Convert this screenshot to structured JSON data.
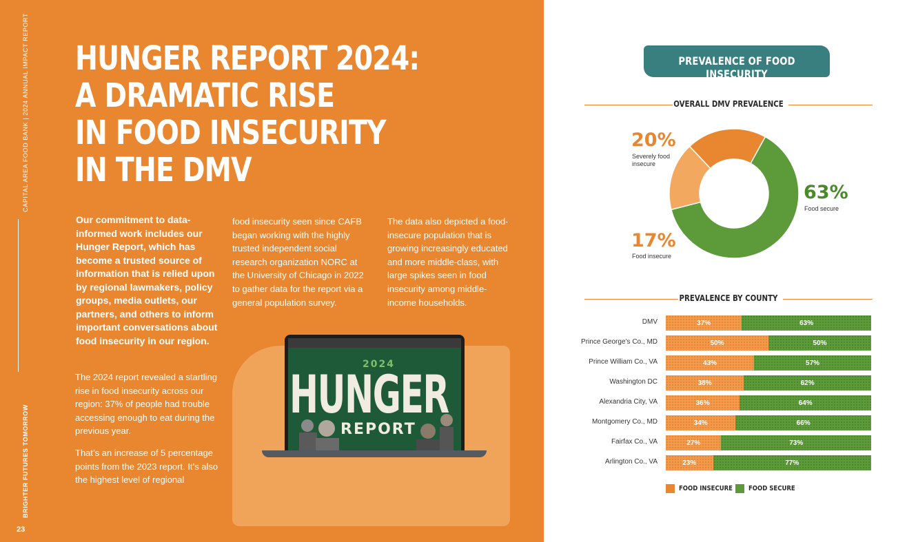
{
  "sidebar": {
    "top_text": "CAPITAL AREA FOOD BANK | 2024 ANNUAL IMPACT REPORT",
    "bottom_text": "BRIGHTER FUTURES TOMORROW",
    "page_number": "23"
  },
  "headline": {
    "line1": "HUNGER REPORT 2024:",
    "line2": "A DRAMATIC RISE",
    "line3": "IN FOOD INSECURITY",
    "line4": "IN THE DMV"
  },
  "body": {
    "lead": "Our commitment to data-informed work includes our Hunger Report, which has become a trusted source of information that is relied upon by regional lawmakers, policy groups, media outlets, our partners, and others to inform important conversations about food insecurity in our region.",
    "para1": "The 2024 report revealed a startling rise in food insecurity across our region: 37% of people had trouble accessing enough to eat during the previous year.",
    "para2": "That’s an increase of 5 percentage points from the 2023 report. It’s also the highest level of regional",
    "col2": "food insecurity seen since CAFB began working with the highly trusted independent social research organization NORC at the University of Chicago in 2022 to gather data for the report via a general population survey.",
    "col3": "The data also depicted a food-insecure population that is growing increasingly educated and more middle-class, with large spikes seen in food insecurity among middle-income households."
  },
  "laptop": {
    "year": "2024",
    "title": "HUNGER",
    "subtitle": "REPORT"
  },
  "colors": {
    "orange": "#e98630",
    "green": "#5d9a3a",
    "teal": "#3a7f80"
  },
  "banner": {
    "title": "PREVALENCE OF FOOD INSECURITY"
  },
  "overall": {
    "heading": "OVERALL DMV PREVALENCE"
  },
  "county": {
    "heading": "PREVALENCE BY COUNTY"
  },
  "chart_data": [
    {
      "type": "pie",
      "title": "OVERALL DMV PREVALENCE",
      "categories": [
        "Food secure",
        "Food insecure",
        "Severely food insecure"
      ],
      "values": [
        63,
        17,
        20
      ],
      "labels": [
        "63%",
        "17%",
        "20%"
      ],
      "label_texts": [
        "Food secure",
        "Food insecure",
        "Severely food insecure"
      ]
    },
    {
      "type": "bar",
      "title": "PREVALENCE BY COUNTY",
      "categories": [
        "DMV",
        "Prince George’s Co., MD",
        "Prince William Co., VA",
        "Washington DC",
        "Alexandria City, VA",
        "Montgomery Co., MD",
        "Fairfax Co., VA",
        "Arlington Co., VA"
      ],
      "series": [
        {
          "name": "FOOD INSECURE",
          "values": [
            37,
            50,
            43,
            38,
            36,
            34,
            27,
            23
          ]
        },
        {
          "name": "FOOD SECURE",
          "values": [
            63,
            50,
            57,
            62,
            64,
            66,
            73,
            77
          ]
        }
      ],
      "stacked": true,
      "xlim": [
        0,
        100
      ],
      "legend": "bottom"
    }
  ]
}
